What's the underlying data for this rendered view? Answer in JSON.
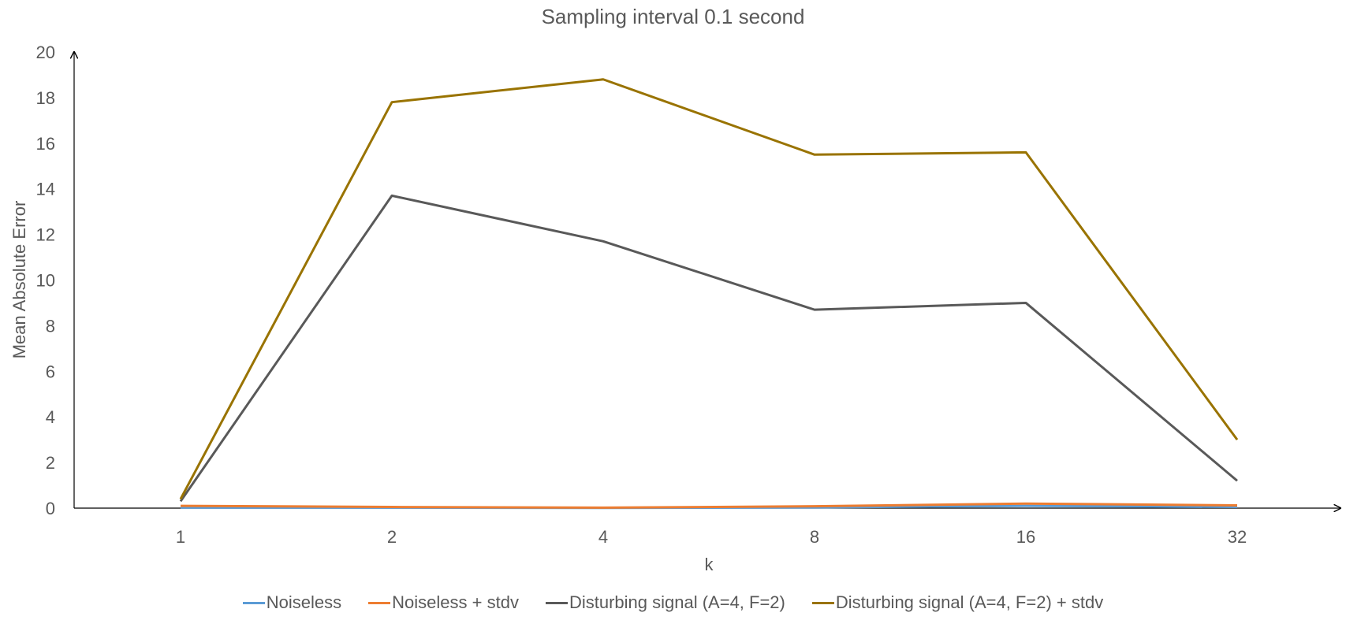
{
  "chart_data": {
    "type": "line",
    "title": "Sampling interval 0.1 second",
    "xlabel": "k",
    "ylabel": "Mean Absolute Error",
    "categories": [
      "1",
      "2",
      "4",
      "8",
      "16",
      "32"
    ],
    "ylim": [
      0,
      20
    ],
    "yticks": [
      "0",
      "2",
      "4",
      "6",
      "8",
      "10",
      "12",
      "14",
      "16",
      "18",
      "20"
    ],
    "grid": false,
    "legend_position": "bottom",
    "series": [
      {
        "name": "Noiseless",
        "color": "#5b9bd5",
        "values": [
          0.02,
          0.02,
          0.01,
          0.03,
          0.1,
          0.05
        ]
      },
      {
        "name": "Noiseless + stdv",
        "color": "#ed7d31",
        "values": [
          0.1,
          0.05,
          0.02,
          0.08,
          0.2,
          0.12
        ]
      },
      {
        "name": "Disturbing signal (A=4, F=2)",
        "color": "#595959",
        "values": [
          0.3,
          13.7,
          11.7,
          8.7,
          9.0,
          1.2
        ]
      },
      {
        "name": "Disturbing signal (A=4, F=2) + stdv",
        "color": "#997300",
        "values": [
          0.4,
          17.8,
          18.8,
          15.5,
          15.6,
          3.0
        ]
      }
    ]
  }
}
